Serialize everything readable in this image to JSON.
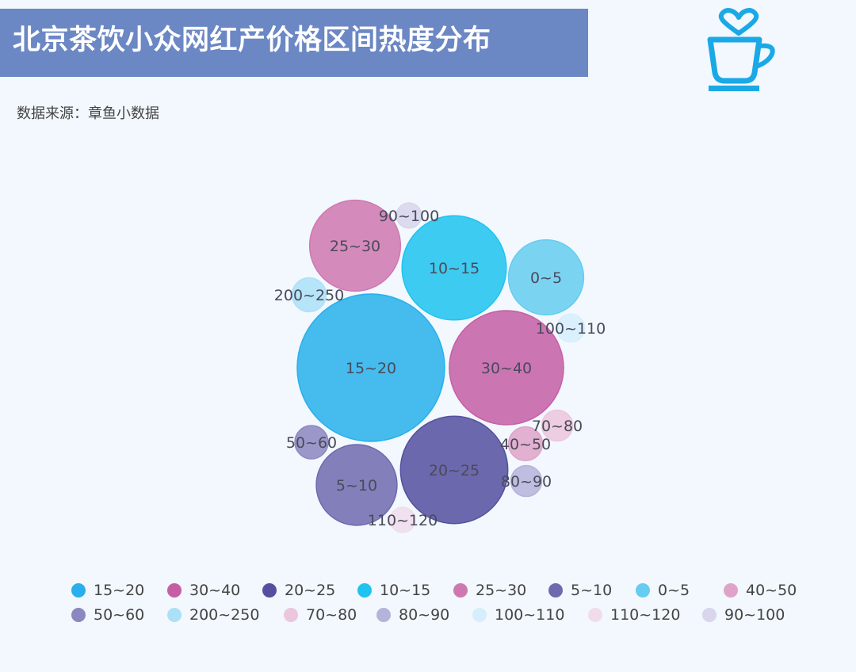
{
  "page": {
    "title": "北京茶饮小众网红产价格区间热度分布",
    "source": "数据来源：章鱼小数据",
    "logo_icon": "coffee-cup-heart-icon"
  },
  "colors": {
    "title_bg": "#6b87c4",
    "logo": "#1aa9e6",
    "background": "#f2f8fd"
  },
  "chart_data": {
    "type": "bubble",
    "title": "北京茶饮小众网红产价格区间热度分布",
    "legend_position": "bottom",
    "series": [
      {
        "name": "15~20",
        "value": 100,
        "color": "#27b0eb"
      },
      {
        "name": "30~40",
        "value": 60,
        "color": "#c65ea6"
      },
      {
        "name": "20~25",
        "value": 53,
        "color": "#554f9f"
      },
      {
        "name": "10~15",
        "value": 50,
        "color": "#1ec3ef"
      },
      {
        "name": "25~30",
        "value": 38,
        "color": "#cf78b0"
      },
      {
        "name": "5~10",
        "value": 30,
        "color": "#6e6aae"
      },
      {
        "name": "0~5",
        "value": 26,
        "color": "#66ccf0"
      },
      {
        "name": "40~50",
        "value": 5.3,
        "color": "#dfa3c9"
      },
      {
        "name": "50~60",
        "value": 5.1,
        "color": "#8c87c0"
      },
      {
        "name": "200~250",
        "value": 5.3,
        "color": "#ace0f7"
      },
      {
        "name": "70~80",
        "value": 4.4,
        "color": "#ecc6dc"
      },
      {
        "name": "80~90",
        "value": 4.4,
        "color": "#b6b3db"
      },
      {
        "name": "100~110",
        "value": 3.6,
        "color": "#d6eefb"
      },
      {
        "name": "110~120",
        "value": 2.9,
        "color": "#f1dceb"
      },
      {
        "name": "90~100",
        "value": 2.9,
        "color": "#d8d5ec"
      }
    ]
  }
}
